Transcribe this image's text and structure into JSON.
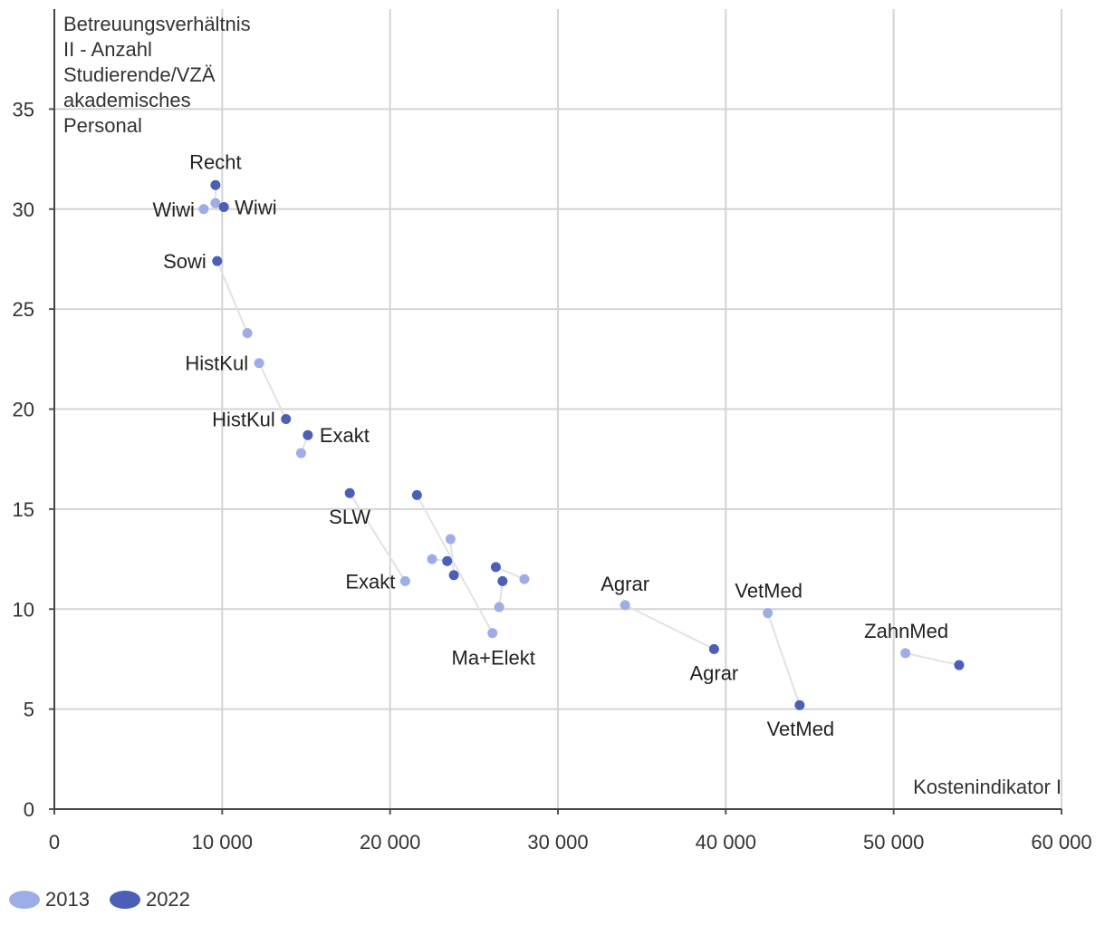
{
  "chart_data": {
    "type": "scatter",
    "title": "",
    "ylabel_lines": [
      "Betreuungsverhältnis",
      "II - Anzahl",
      "Studierende/VZÄ",
      "akademisches",
      "Personal"
    ],
    "xlabel": "Kostenindikator I",
    "xlim": [
      0,
      60000
    ],
    "ylim": [
      0,
      40
    ],
    "x_ticks": [
      0,
      10000,
      20000,
      30000,
      40000,
      50000,
      60000
    ],
    "x_tick_labels": [
      "0",
      "10 000",
      "20 000",
      "30 000",
      "40 000",
      "50 000",
      "60 000"
    ],
    "y_ticks": [
      0,
      5,
      10,
      15,
      20,
      25,
      30,
      35
    ],
    "y_tick_labels": [
      "0",
      "5",
      "10",
      "15",
      "20",
      "25",
      "30",
      "35"
    ],
    "grid": true,
    "legend": [
      {
        "name": "2013",
        "color": "#9daee6"
      },
      {
        "name": "2022",
        "color": "#4a5fb5"
      }
    ],
    "pairs": [
      {
        "label2013": "",
        "label2022": "Recht",
        "p2013": [
          9600,
          30.3
        ],
        "p2022": [
          9600,
          31.2
        ]
      },
      {
        "label2013": "Wiwi",
        "label2022": "Wiwi",
        "p2013": [
          8900,
          30.0
        ],
        "p2022": [
          10100,
          30.1
        ]
      },
      {
        "label2013": "",
        "label2022": "Sowi",
        "p2013": [
          11500,
          23.8
        ],
        "p2022": [
          9700,
          27.4
        ]
      },
      {
        "label2013": "HistKul",
        "label2022": "HistKul",
        "p2013": [
          12200,
          22.3
        ],
        "p2022": [
          13800,
          19.5
        ]
      },
      {
        "label2013": "",
        "label2022": "Exakt",
        "p2013": [
          14700,
          17.8
        ],
        "p2022": [
          15100,
          18.7
        ]
      },
      {
        "label2013": "Exakt",
        "label2022": "SLW",
        "p2013": [
          20900,
          11.4
        ],
        "p2022": [
          17600,
          15.8
        ]
      },
      {
        "label2013": "Ma+Elekt",
        "label2022": "",
        "p2013": [
          26100,
          8.8
        ],
        "p2022": [
          21600,
          15.7
        ]
      },
      {
        "label2013": "",
        "label2022": "",
        "p2013": [
          22500,
          12.5
        ],
        "p2022": [
          23400,
          12.4
        ]
      },
      {
        "label2013": "",
        "label2022": "",
        "p2013": [
          23600,
          13.5
        ],
        "p2022": [
          23800,
          11.7
        ]
      },
      {
        "label2013": "",
        "label2022": "",
        "p2013": [
          26500,
          10.1
        ],
        "p2022": [
          26700,
          11.4
        ]
      },
      {
        "label2013": "",
        "label2022": "",
        "p2013": [
          28000,
          11.5
        ],
        "p2022": [
          26300,
          12.1
        ]
      },
      {
        "label2013": "Agrar",
        "label2022": "Agrar",
        "p2013": [
          34000,
          10.2
        ],
        "p2022": [
          39300,
          8.0
        ]
      },
      {
        "label2013": "VetMed",
        "label2022": "VetMed",
        "p2013": [
          42500,
          9.8
        ],
        "p2022": [
          44400,
          5.2
        ]
      },
      {
        "label2013": "ZahnMed",
        "label2022": "",
        "p2013": [
          50700,
          7.8
        ],
        "p2022": [
          53900,
          7.2
        ]
      }
    ]
  }
}
